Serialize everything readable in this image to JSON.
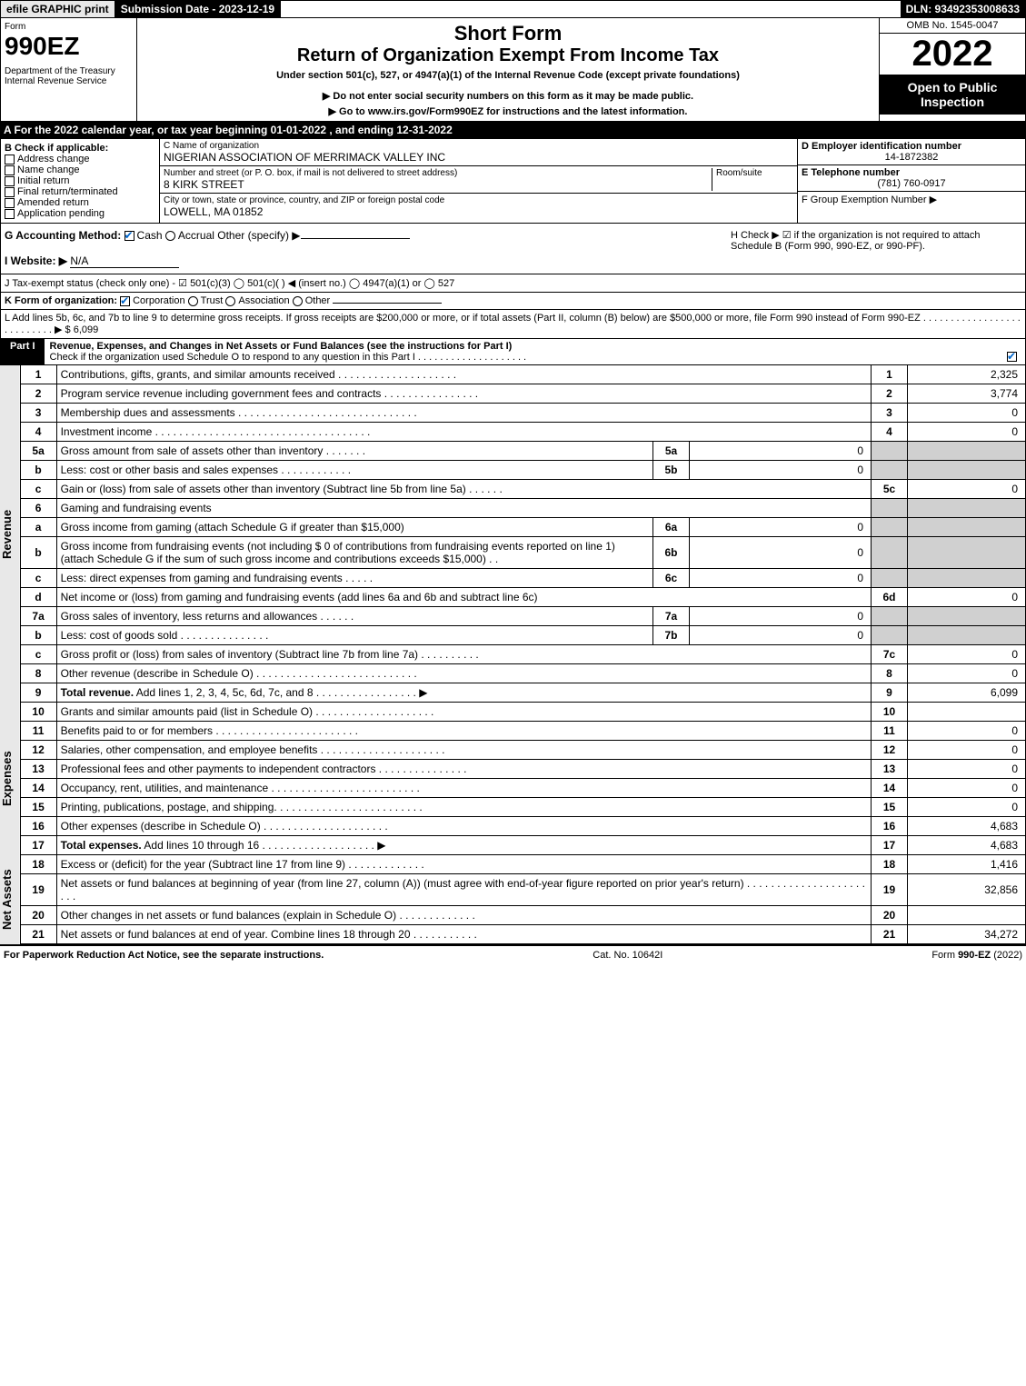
{
  "header": {
    "efile_label": "efile GRAPHIC print",
    "submission_date_label": "Submission Date - 2023-12-19",
    "dln": "DLN: 93492353008633"
  },
  "form_meta": {
    "form_label": "Form",
    "form_number": "990EZ",
    "dept": "Department of the Treasury",
    "irs": "Internal Revenue Service",
    "short_form": "Short Form",
    "return_title": "Return of Organization Exempt From Income Tax",
    "under_section": "Under section 501(c), 527, or 4947(a)(1) of the Internal Revenue Code (except private foundations)",
    "ssn_warn": "▶ Do not enter social security numbers on this form as it may be made public.",
    "goto": "▶ Go to www.irs.gov/Form990EZ for instructions and the latest information.",
    "omb": "OMB No. 1545-0047",
    "year": "2022",
    "open_to": "Open to Public Inspection"
  },
  "section_a": "A  For the 2022 calendar year, or tax year beginning 01-01-2022 , and ending 12-31-2022",
  "section_b": {
    "label": "B  Check if applicable:",
    "items": [
      "Address change",
      "Name change",
      "Initial return",
      "Final return/terminated",
      "Amended return",
      "Application pending"
    ]
  },
  "section_c": {
    "name_label": "C Name of organization",
    "name": "NIGERIAN ASSOCIATION OF MERRIMACK VALLEY INC",
    "addr_label": "Number and street (or P. O. box, if mail is not delivered to street address)",
    "room_label": "Room/suite",
    "addr": "8 KIRK STREET",
    "city_label": "City or town, state or province, country, and ZIP or foreign postal code",
    "city": "LOWELL, MA  01852"
  },
  "section_d": {
    "label": "D Employer identification number",
    "value": "14-1872382"
  },
  "section_e": {
    "label": "E Telephone number",
    "value": "(781) 760-0917"
  },
  "section_f": {
    "label": "F Group Exemption Number  ▶"
  },
  "section_g": {
    "label": "G Accounting Method:",
    "cash": "Cash",
    "accrual": "Accrual",
    "other": "Other (specify) ▶"
  },
  "section_h": "H  Check ▶  ☑  if the organization is not required to attach Schedule B (Form 990, 990-EZ, or 990-PF).",
  "section_i": {
    "label": "I Website: ▶",
    "value": "N/A"
  },
  "section_j": "J Tax-exempt status (check only one) -  ☑ 501(c)(3)  ◯ 501(c)(  ) ◀ (insert no.)  ◯ 4947(a)(1) or  ◯ 527",
  "section_k": {
    "label": "K Form of organization:",
    "corp": "Corporation",
    "trust": "Trust",
    "assoc": "Association",
    "other": "Other"
  },
  "section_l": "L Add lines 5b, 6c, and 7b to line 9 to determine gross receipts. If gross receipts are $200,000 or more, or if total assets (Part II, column (B) below) are $500,000 or more, file Form 990 instead of Form 990-EZ  . . . . . . . . . . . . . . . . . . . . . . . . . . .  ▶ $ 6,099",
  "part1": {
    "header": "Part I",
    "title": "Revenue, Expenses, and Changes in Net Assets or Fund Balances (see the instructions for Part I)",
    "check_line": "Check if the organization used Schedule O to respond to any question in this Part I . . . . . . . . . . . . . . . . . . . .",
    "vlabels": {
      "revenue": "Revenue",
      "expenses": "Expenses",
      "netassets": "Net Assets"
    }
  },
  "lines": [
    {
      "n": "1",
      "desc": "Contributions, gifts, grants, and similar amounts received  . . . . . . . . . . . . . . . . . . . .",
      "rn": "1",
      "rv": "2,325"
    },
    {
      "n": "2",
      "desc": "Program service revenue including government fees and contracts  . . . . . . . . . . . . . . . .",
      "rn": "2",
      "rv": "3,774"
    },
    {
      "n": "3",
      "desc": "Membership dues and assessments  . . . . . . . . . . . . . . . . . . . . . . . . . . . . . .",
      "rn": "3",
      "rv": "0"
    },
    {
      "n": "4",
      "desc": "Investment income . . . . . . . . . . . . . . . . . . . . . . . . . . . . . . . . . . . .",
      "rn": "4",
      "rv": "0"
    },
    {
      "n": "5a",
      "desc": "Gross amount from sale of assets other than inventory  . . . . . . .",
      "mid": "5a",
      "mv": "0"
    },
    {
      "n": "b",
      "desc": "Less: cost or other basis and sales expenses  . . . . . . . . . . . .",
      "mid": "5b",
      "mv": "0"
    },
    {
      "n": "c",
      "desc": "Gain or (loss) from sale of assets other than inventory (Subtract line 5b from line 5a)  . . . . . .",
      "rn": "5c",
      "rv": "0"
    },
    {
      "n": "6",
      "desc": "Gaming and fundraising events"
    },
    {
      "n": "a",
      "desc": "Gross income from gaming (attach Schedule G if greater than $15,000)",
      "mid": "6a",
      "mv": "0"
    },
    {
      "n": "b",
      "desc": "Gross income from fundraising events (not including $  0               of contributions from fundraising events reported on line 1) (attach Schedule G if the sum of such gross income and contributions exceeds $15,000)    .  .",
      "mid": "6b",
      "mv": "0"
    },
    {
      "n": "c",
      "desc": "Less: direct expenses from gaming and fundraising events   . . . . .",
      "mid": "6c",
      "mv": "0"
    },
    {
      "n": "d",
      "desc": "Net income or (loss) from gaming and fundraising events (add lines 6a and 6b and subtract line 6c)",
      "rn": "6d",
      "rv": "0"
    },
    {
      "n": "7a",
      "desc": "Gross sales of inventory, less returns and allowances  . . . . . .",
      "mid": "7a",
      "mv": "0"
    },
    {
      "n": "b",
      "desc": "Less: cost of goods sold          .  .  .  .  .  .  .  .  .  .  .  .  .  .  .",
      "mid": "7b",
      "mv": "0"
    },
    {
      "n": "c",
      "desc": "Gross profit or (loss) from sales of inventory (Subtract line 7b from line 7a)  . . . . . . . . . .",
      "rn": "7c",
      "rv": "0"
    },
    {
      "n": "8",
      "desc": "Other revenue (describe in Schedule O) . . . . . . . . . . . . . . . . . . . . . . . . . . .",
      "rn": "8",
      "rv": "0"
    },
    {
      "n": "9",
      "desc": "Total revenue. Add lines 1, 2, 3, 4, 5c, 6d, 7c, and 8  .  . . . . . . . . . . . . . . . .   ▶",
      "rn": "9",
      "rv": "6,099",
      "bold": true
    }
  ],
  "exp_lines": [
    {
      "n": "10",
      "desc": "Grants and similar amounts paid (list in Schedule O)  . . . . . . . . . . . . . . . . . . . .",
      "rn": "10",
      "rv": ""
    },
    {
      "n": "11",
      "desc": "Benefits paid to or for members      .  .  .  .  .  .  .  .  .  .  .  .  .  .  .  .  .  .  .  .  .  .  .  .",
      "rn": "11",
      "rv": "0"
    },
    {
      "n": "12",
      "desc": "Salaries, other compensation, and employee benefits . . . . . . . . . . . . . . . . . . . . .",
      "rn": "12",
      "rv": "0"
    },
    {
      "n": "13",
      "desc": "Professional fees and other payments to independent contractors  . . . . . . . . . . . . . . .",
      "rn": "13",
      "rv": "0"
    },
    {
      "n": "14",
      "desc": "Occupancy, rent, utilities, and maintenance . . . . . . . . . . . . . . . . . . . . . . . . .",
      "rn": "14",
      "rv": "0"
    },
    {
      "n": "15",
      "desc": "Printing, publications, postage, and shipping. . . . . . . . . . . . . . . . . . . . . . . . .",
      "rn": "15",
      "rv": "0"
    },
    {
      "n": "16",
      "desc": "Other expenses (describe in Schedule O)     .  .  .  .  .  .  .  .  .  .  .  .  .  .  .  .  .  .  .  .  .",
      "rn": "16",
      "rv": "4,683"
    },
    {
      "n": "17",
      "desc": "Total expenses. Add lines 10 through 16     .  .  .  .  .  .  .  .  .  .  .  .  .  .  .  .  .  .  .   ▶",
      "rn": "17",
      "rv": "4,683",
      "bold": true
    }
  ],
  "na_lines": [
    {
      "n": "18",
      "desc": "Excess or (deficit) for the year (Subtract line 17 from line 9)        .  .  .  .  .  .  .  .  .  .  .  .  .",
      "rn": "18",
      "rv": "1,416"
    },
    {
      "n": "19",
      "desc": "Net assets or fund balances at beginning of year (from line 27, column (A)) (must agree with end-of-year figure reported on prior year's return) . . . . . . . . . . . . . . . . . . . . . . .",
      "rn": "19",
      "rv": "32,856"
    },
    {
      "n": "20",
      "desc": "Other changes in net assets or fund balances (explain in Schedule O) . . . . . . . . . . . . .",
      "rn": "20",
      "rv": ""
    },
    {
      "n": "21",
      "desc": "Net assets or fund balances at end of year. Combine lines 18 through 20 . . . . . . . . . . .",
      "rn": "21",
      "rv": "34,272"
    }
  ],
  "footer": {
    "left": "For Paperwork Reduction Act Notice, see the separate instructions.",
    "mid": "Cat. No. 10642I",
    "right": "Form 990-EZ (2022)"
  }
}
